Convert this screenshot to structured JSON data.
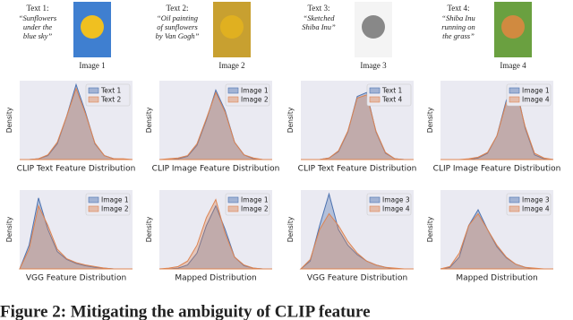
{
  "panels": [
    {
      "text_label": "Text 1:",
      "quote_lines": [
        "“Sunflowers",
        "under the",
        "blue sky”"
      ],
      "image_label": "Image 1"
    },
    {
      "text_label": "Text 2:",
      "quote_lines": [
        "“Oil painting",
        "of sunflowers",
        "by Van Gogh”"
      ],
      "image_label": "Image 2"
    },
    {
      "text_label": "Text 3:",
      "quote_lines": [
        "“Sketched",
        "Shiba Inu”"
      ],
      "image_label": "Image 3"
    },
    {
      "text_label": "Text 4:",
      "quote_lines": [
        "“Shiba Inu",
        "running on",
        "the grass”"
      ],
      "image_label": "Image 4"
    }
  ],
  "chart_data": [
    {
      "type": "area",
      "x_label": "CLIP Text Feature Distribution",
      "y_label": "Density",
      "x": [
        0,
        1,
        2,
        3,
        4,
        5,
        6,
        7,
        8,
        9,
        10,
        11,
        12
      ],
      "xlim": [
        0,
        12
      ],
      "ylim": [
        0,
        1
      ],
      "legend": "upper right",
      "series": [
        {
          "name": "Text 1",
          "color": "#4c72b0",
          "values": [
            0,
            0,
            0.01,
            0.05,
            0.2,
            0.55,
            0.95,
            0.6,
            0.2,
            0.05,
            0.01,
            0,
            0
          ]
        },
        {
          "name": "Text 2",
          "color": "#dd8452",
          "values": [
            0,
            0,
            0.01,
            0.06,
            0.22,
            0.55,
            0.9,
            0.58,
            0.21,
            0.05,
            0.01,
            0.01,
            0
          ]
        }
      ]
    },
    {
      "type": "area",
      "x_label": "CLIP Image Feature Distribution",
      "y_label": "Density",
      "x": [
        0,
        1,
        2,
        3,
        4,
        5,
        6,
        7,
        8,
        9,
        10,
        11,
        12
      ],
      "xlim": [
        0,
        12
      ],
      "ylim": [
        0,
        1
      ],
      "legend": "upper right",
      "series": [
        {
          "name": "Image 1",
          "color": "#4c72b0",
          "values": [
            0,
            0,
            0.01,
            0.04,
            0.18,
            0.5,
            0.88,
            0.62,
            0.22,
            0.06,
            0.01,
            0,
            0
          ]
        },
        {
          "name": "Image 2",
          "color": "#dd8452",
          "values": [
            0,
            0.01,
            0.02,
            0.05,
            0.2,
            0.52,
            0.85,
            0.6,
            0.22,
            0.06,
            0.02,
            0,
            0
          ]
        }
      ]
    },
    {
      "type": "area",
      "x_label": "CLIP Text Feature Distribution",
      "y_label": "Density",
      "x": [
        0,
        1,
        2,
        3,
        4,
        5,
        6,
        7,
        8,
        9,
        10,
        11,
        12
      ],
      "xlim": [
        0,
        12
      ],
      "ylim": [
        0,
        1
      ],
      "legend": "upper right",
      "series": [
        {
          "name": "Text 1",
          "color": "#4c72b0",
          "values": [
            0,
            0,
            0,
            0.02,
            0.1,
            0.35,
            0.8,
            0.85,
            0.35,
            0.08,
            0.01,
            0,
            0
          ]
        },
        {
          "name": "Text 4",
          "color": "#dd8452",
          "values": [
            0,
            0,
            0,
            0.02,
            0.11,
            0.36,
            0.78,
            0.82,
            0.36,
            0.09,
            0.01,
            0,
            0
          ]
        }
      ]
    },
    {
      "type": "area",
      "x_label": "CLIP Image Feature Distribution",
      "y_label": "Density",
      "x": [
        0,
        1,
        2,
        3,
        4,
        5,
        6,
        7,
        8,
        9,
        10,
        11,
        12
      ],
      "xlim": [
        0,
        12
      ],
      "ylim": [
        0,
        1
      ],
      "legend": "upper right",
      "series": [
        {
          "name": "Image 1",
          "color": "#4c72b0",
          "values": [
            0,
            0,
            0,
            0,
            0.02,
            0.08,
            0.3,
            0.75,
            0.95,
            0.4,
            0.06,
            0.01,
            0
          ]
        },
        {
          "name": "Image 4",
          "color": "#dd8452",
          "values": [
            0,
            0,
            0,
            0.01,
            0.03,
            0.09,
            0.3,
            0.72,
            0.9,
            0.42,
            0.08,
            0.02,
            0
          ]
        }
      ]
    },
    {
      "type": "area",
      "x_label": "VGG Feature Distribution",
      "y_label": "Density",
      "x": [
        0,
        1,
        2,
        3,
        4,
        5,
        6,
        7,
        8,
        9,
        10,
        11,
        12
      ],
      "xlim": [
        0,
        12
      ],
      "ylim": [
        0,
        1
      ],
      "legend": "upper right",
      "series": [
        {
          "name": "Image 1",
          "color": "#4c72b0",
          "values": [
            0,
            0.3,
            0.9,
            0.5,
            0.22,
            0.12,
            0.07,
            0.04,
            0.02,
            0.01,
            0,
            0,
            0
          ]
        },
        {
          "name": "Image 2",
          "color": "#dd8452",
          "values": [
            0,
            0.25,
            0.8,
            0.55,
            0.25,
            0.13,
            0.08,
            0.05,
            0.03,
            0.01,
            0,
            0,
            0
          ]
        }
      ]
    },
    {
      "type": "area",
      "x_label": "Mapped Distribution",
      "y_label": "Density",
      "x": [
        0,
        1,
        2,
        3,
        4,
        5,
        6,
        7,
        8,
        9,
        10,
        11,
        12
      ],
      "xlim": [
        0,
        12
      ],
      "ylim": [
        0,
        1
      ],
      "legend": "upper right",
      "series": [
        {
          "name": "Image 1",
          "color": "#4c72b0",
          "values": [
            0,
            0,
            0.01,
            0.05,
            0.2,
            0.55,
            0.8,
            0.5,
            0.15,
            0.04,
            0.01,
            0,
            0
          ]
        },
        {
          "name": "Image 2",
          "color": "#dd8452",
          "values": [
            0,
            0.01,
            0.03,
            0.1,
            0.3,
            0.65,
            0.88,
            0.45,
            0.15,
            0.05,
            0.01,
            0,
            0
          ]
        }
      ]
    },
    {
      "type": "area",
      "x_label": "VGG Feature Distribution",
      "y_label": "Density",
      "x": [
        0,
        1,
        2,
        3,
        4,
        5,
        6,
        7,
        8,
        9,
        10,
        11,
        12
      ],
      "xlim": [
        0,
        12
      ],
      "ylim": [
        0,
        1
      ],
      "legend": "upper right",
      "series": [
        {
          "name": "Image 3",
          "color": "#4c72b0",
          "values": [
            0,
            0.1,
            0.55,
            0.95,
            0.5,
            0.3,
            0.18,
            0.1,
            0.05,
            0.02,
            0,
            0,
            0
          ]
        },
        {
          "name": "Image 4",
          "color": "#dd8452",
          "values": [
            0,
            0.12,
            0.5,
            0.7,
            0.55,
            0.35,
            0.2,
            0.1,
            0.05,
            0.02,
            0.01,
            0,
            0
          ]
        }
      ]
    },
    {
      "type": "area",
      "x_label": "Mapped Distribution",
      "y_label": "Density",
      "x": [
        0,
        1,
        2,
        3,
        4,
        5,
        6,
        7,
        8,
        9,
        10,
        11,
        12
      ],
      "xlim": [
        0,
        12
      ],
      "ylim": [
        0,
        1
      ],
      "legend": "upper right",
      "series": [
        {
          "name": "Image 3",
          "color": "#4c72b0",
          "values": [
            0,
            0.02,
            0.15,
            0.55,
            0.75,
            0.5,
            0.28,
            0.14,
            0.06,
            0.02,
            0,
            0,
            0
          ]
        },
        {
          "name": "Image 4",
          "color": "#dd8452",
          "values": [
            0,
            0.03,
            0.2,
            0.55,
            0.7,
            0.5,
            0.3,
            0.15,
            0.06,
            0.02,
            0.01,
            0,
            0
          ]
        }
      ]
    }
  ],
  "caption": "Figure 2: Mitigating the ambiguity of CLIP feature"
}
